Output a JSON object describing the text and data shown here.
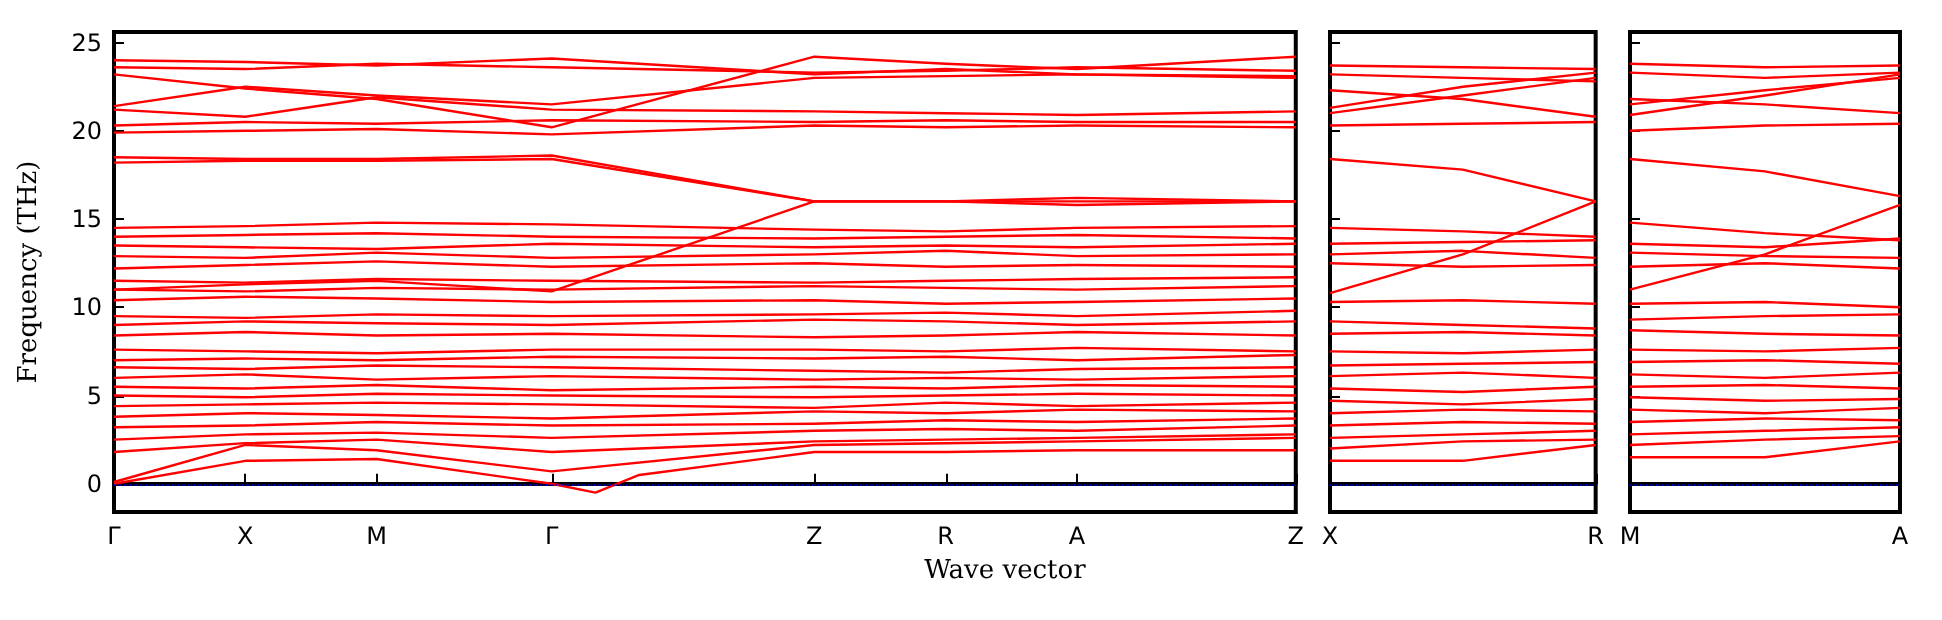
{
  "chart_data": [
    {
      "type": "line",
      "xlabel": "Wave vector",
      "ylabel": "Frequency (THz)",
      "ylim": [
        -1.6,
        25.6
      ],
      "yticks": [
        0,
        5,
        10,
        15,
        20,
        25
      ],
      "categories": [
        "Γ",
        null,
        null,
        "X",
        null,
        null,
        "M",
        null,
        null,
        null,
        "Γ",
        null,
        null,
        null,
        null,
        null,
        "Z",
        null,
        null,
        "R",
        null,
        null,
        "A",
        null,
        null,
        null,
        null,
        "Z"
      ],
      "grid": false,
      "marker": "none",
      "line_style": "solid",
      "ref_lines": [
        {
          "axis": "y",
          "value": 0,
          "color": "#0000ff",
          "line_style": "dotted"
        }
      ],
      "series": [
        {
          "color": "#ff0000",
          "values": [
            0,
            null,
            null,
            1.3,
            null,
            null,
            1.4,
            null,
            null,
            null,
            0,
            -0.5,
            0.5,
            null,
            null,
            null,
            1.8,
            null,
            null,
            1.8,
            null,
            null,
            1.9,
            null,
            null,
            null,
            null,
            1.9
          ]
        },
        {
          "color": "#ff0000",
          "values": [
            0.1,
            null,
            null,
            2.2,
            null,
            null,
            1.9,
            null,
            null,
            null,
            0.7,
            null,
            null,
            null,
            null,
            null,
            2.2,
            null,
            null,
            2.3,
            null,
            null,
            2.4,
            null,
            null,
            null,
            null,
            2.6
          ]
        },
        {
          "color": "#ff0000",
          "values": [
            1.8,
            null,
            null,
            2.3,
            null,
            null,
            2.5,
            null,
            null,
            null,
            1.8,
            null,
            null,
            null,
            null,
            null,
            2.4,
            null,
            null,
            2.5,
            null,
            null,
            2.6,
            null,
            null,
            null,
            null,
            2.8
          ]
        },
        {
          "color": "#ff0000",
          "values": [
            2.5,
            null,
            null,
            2.8,
            null,
            null,
            2.9,
            null,
            null,
            null,
            2.6,
            null,
            null,
            null,
            null,
            null,
            3.0,
            null,
            null,
            3.1,
            null,
            null,
            3.0,
            null,
            null,
            null,
            null,
            3.3
          ]
        },
        {
          "color": "#ff0000",
          "values": [
            3.2,
            null,
            null,
            3.3,
            null,
            null,
            3.5,
            null,
            null,
            null,
            3.3,
            null,
            null,
            null,
            null,
            null,
            3.4,
            null,
            null,
            3.6,
            null,
            null,
            3.5,
            null,
            null,
            null,
            null,
            3.7
          ]
        },
        {
          "color": "#ff0000",
          "values": [
            3.8,
            null,
            null,
            4.0,
            null,
            null,
            3.9,
            null,
            null,
            null,
            3.7,
            null,
            null,
            null,
            null,
            null,
            4.1,
            null,
            null,
            4.0,
            null,
            null,
            4.2,
            null,
            null,
            null,
            null,
            4.1
          ]
        },
        {
          "color": "#ff0000",
          "values": [
            4.4,
            null,
            null,
            4.5,
            null,
            null,
            4.6,
            null,
            null,
            null,
            4.5,
            null,
            null,
            null,
            null,
            null,
            4.3,
            null,
            null,
            4.6,
            null,
            null,
            4.4,
            null,
            null,
            null,
            null,
            4.6
          ]
        },
        {
          "color": "#ff0000",
          "values": [
            5.0,
            null,
            null,
            4.9,
            null,
            null,
            5.1,
            null,
            null,
            null,
            5.0,
            null,
            null,
            null,
            null,
            null,
            4.9,
            null,
            null,
            5.0,
            null,
            null,
            5.1,
            null,
            null,
            null,
            null,
            5.0
          ]
        },
        {
          "color": "#ff0000",
          "values": [
            5.5,
            null,
            null,
            5.4,
            null,
            null,
            5.6,
            null,
            null,
            null,
            5.3,
            null,
            null,
            null,
            null,
            null,
            5.5,
            null,
            null,
            5.4,
            null,
            null,
            5.6,
            null,
            null,
            null,
            null,
            5.5
          ]
        },
        {
          "color": "#ff0000",
          "values": [
            6.0,
            null,
            null,
            6.2,
            null,
            null,
            5.9,
            null,
            null,
            null,
            6.1,
            null,
            null,
            null,
            null,
            null,
            5.9,
            null,
            null,
            6.0,
            null,
            null,
            5.9,
            null,
            null,
            null,
            null,
            6.1
          ]
        },
        {
          "color": "#ff0000",
          "values": [
            6.6,
            null,
            null,
            6.5,
            null,
            null,
            6.7,
            null,
            null,
            null,
            6.6,
            null,
            null,
            null,
            null,
            null,
            6.4,
            null,
            null,
            6.3,
            null,
            null,
            6.5,
            null,
            null,
            null,
            null,
            6.6
          ]
        },
        {
          "color": "#ff0000",
          "values": [
            7.0,
            null,
            null,
            7.1,
            null,
            null,
            7.0,
            null,
            null,
            null,
            7.2,
            null,
            null,
            null,
            null,
            null,
            7.1,
            null,
            null,
            7.2,
            null,
            null,
            7.0,
            null,
            null,
            null,
            null,
            7.3
          ]
        },
        {
          "color": "#ff0000",
          "values": [
            7.6,
            null,
            null,
            7.5,
            null,
            null,
            7.4,
            null,
            null,
            null,
            7.6,
            null,
            null,
            null,
            null,
            null,
            7.6,
            null,
            null,
            7.5,
            null,
            null,
            7.7,
            null,
            null,
            null,
            null,
            7.5
          ]
        },
        {
          "color": "#ff0000",
          "values": [
            8.4,
            null,
            null,
            8.6,
            null,
            null,
            8.4,
            null,
            null,
            null,
            8.5,
            null,
            null,
            null,
            null,
            null,
            8.3,
            null,
            null,
            8.4,
            null,
            null,
            8.6,
            null,
            null,
            null,
            null,
            8.4
          ]
        },
        {
          "color": "#ff0000",
          "values": [
            9.0,
            null,
            null,
            9.2,
            null,
            null,
            9.1,
            null,
            null,
            null,
            9.0,
            null,
            null,
            null,
            null,
            null,
            9.3,
            null,
            null,
            9.2,
            null,
            null,
            9.0,
            null,
            null,
            null,
            null,
            9.2
          ]
        },
        {
          "color": "#ff0000",
          "values": [
            9.5,
            null,
            null,
            9.4,
            null,
            null,
            9.6,
            null,
            null,
            null,
            9.5,
            null,
            null,
            null,
            null,
            null,
            9.6,
            null,
            null,
            9.7,
            null,
            null,
            9.5,
            null,
            null,
            null,
            null,
            9.8
          ]
        },
        {
          "color": "#ff0000",
          "values": [
            10.4,
            null,
            null,
            10.6,
            null,
            null,
            10.5,
            null,
            null,
            null,
            10.3,
            null,
            null,
            null,
            null,
            null,
            10.4,
            null,
            null,
            10.2,
            null,
            null,
            10.3,
            null,
            null,
            null,
            null,
            10.5
          ]
        },
        {
          "color": "#ff0000",
          "values": [
            11.0,
            null,
            null,
            10.9,
            null,
            null,
            11.1,
            null,
            null,
            null,
            11.0,
            null,
            null,
            null,
            null,
            null,
            11.2,
            null,
            null,
            11.1,
            null,
            null,
            11.0,
            null,
            null,
            null,
            null,
            11.2
          ]
        },
        {
          "color": "#ff0000",
          "values": [
            11.5,
            null,
            null,
            11.4,
            null,
            null,
            11.6,
            null,
            null,
            null,
            11.5,
            null,
            null,
            null,
            null,
            null,
            11.4,
            null,
            null,
            11.5,
            null,
            null,
            11.6,
            null,
            null,
            null,
            null,
            11.7
          ]
        },
        {
          "color": "#ff0000",
          "values": [
            12.2,
            null,
            null,
            12.4,
            null,
            null,
            12.6,
            null,
            null,
            null,
            12.3,
            null,
            null,
            null,
            null,
            null,
            12.5,
            null,
            null,
            12.3,
            null,
            null,
            12.4,
            null,
            null,
            null,
            null,
            12.3
          ]
        },
        {
          "color": "#ff0000",
          "values": [
            12.9,
            null,
            null,
            12.8,
            null,
            null,
            13.1,
            null,
            null,
            null,
            12.8,
            null,
            null,
            null,
            null,
            null,
            13.0,
            null,
            null,
            13.2,
            null,
            null,
            12.9,
            null,
            null,
            null,
            null,
            13.0
          ]
        },
        {
          "color": "#ff0000",
          "values": [
            13.5,
            null,
            null,
            13.4,
            null,
            null,
            13.3,
            null,
            null,
            null,
            13.6,
            null,
            null,
            null,
            null,
            null,
            13.4,
            null,
            null,
            13.5,
            null,
            null,
            13.4,
            null,
            null,
            null,
            null,
            13.6
          ]
        },
        {
          "color": "#ff0000",
          "values": [
            14.0,
            null,
            null,
            14.1,
            null,
            null,
            14.2,
            null,
            null,
            null,
            14.0,
            null,
            null,
            null,
            null,
            null,
            13.9,
            null,
            null,
            14.0,
            null,
            null,
            14.1,
            null,
            null,
            null,
            null,
            13.9
          ]
        },
        {
          "color": "#ff0000",
          "values": [
            14.5,
            null,
            null,
            14.6,
            null,
            null,
            14.8,
            null,
            null,
            null,
            14.7,
            null,
            null,
            null,
            null,
            null,
            14.4,
            null,
            null,
            14.3,
            null,
            null,
            14.5,
            null,
            null,
            null,
            null,
            14.6
          ]
        },
        {
          "color": "#ff0000",
          "values": [
            11.0,
            null,
            null,
            11.3,
            null,
            null,
            11.5,
            null,
            null,
            null,
            10.9,
            null,
            null,
            null,
            null,
            null,
            16.0,
            null,
            null,
            16.0,
            null,
            null,
            16.2,
            null,
            null,
            null,
            null,
            16.0
          ]
        },
        {
          "color": "#ff0000",
          "values": [
            18.5,
            null,
            null,
            18.4,
            null,
            null,
            18.4,
            null,
            null,
            null,
            18.6,
            null,
            null,
            null,
            null,
            null,
            16.0,
            null,
            null,
            16.0,
            null,
            null,
            15.8,
            null,
            null,
            null,
            null,
            16.0
          ]
        },
        {
          "color": "#ff0000",
          "values": [
            18.2,
            null,
            null,
            18.3,
            null,
            null,
            18.3,
            null,
            null,
            null,
            18.4,
            null,
            null,
            null,
            null,
            null,
            16.0,
            null,
            null,
            16.0,
            null,
            null,
            16.0,
            null,
            null,
            null,
            null,
            16.0
          ]
        },
        {
          "color": "#ff0000",
          "values": [
            19.9,
            null,
            null,
            20.0,
            null,
            null,
            20.1,
            null,
            null,
            null,
            19.8,
            null,
            null,
            null,
            null,
            null,
            20.3,
            null,
            null,
            20.2,
            null,
            null,
            20.3,
            null,
            null,
            null,
            null,
            20.2
          ]
        },
        {
          "color": "#ff0000",
          "values": [
            20.3,
            null,
            null,
            20.5,
            null,
            null,
            20.4,
            null,
            null,
            null,
            20.6,
            null,
            null,
            null,
            null,
            null,
            20.5,
            null,
            null,
            20.6,
            null,
            null,
            20.5,
            null,
            null,
            null,
            null,
            20.5
          ]
        },
        {
          "color": "#ff0000",
          "values": [
            21.2,
            null,
            null,
            20.8,
            null,
            null,
            21.9,
            null,
            null,
            null,
            21.2,
            null,
            null,
            null,
            null,
            null,
            21.1,
            null,
            null,
            21.0,
            null,
            null,
            20.9,
            null,
            null,
            null,
            null,
            21.1
          ]
        },
        {
          "color": "#ff0000",
          "values": [
            21.4,
            null,
            null,
            22.5,
            null,
            null,
            22.0,
            null,
            null,
            null,
            21.5,
            null,
            null,
            null,
            null,
            null,
            23.0,
            null,
            null,
            23.1,
            null,
            null,
            23.2,
            null,
            null,
            null,
            null,
            23.0
          ]
        },
        {
          "color": "#ff0000",
          "values": [
            23.2,
            null,
            null,
            22.4,
            null,
            null,
            21.8,
            null,
            null,
            null,
            20.2,
            null,
            null,
            null,
            null,
            null,
            24.2,
            null,
            null,
            23.8,
            null,
            null,
            23.5,
            null,
            null,
            null,
            null,
            24.2
          ]
        },
        {
          "color": "#ff0000",
          "values": [
            23.6,
            null,
            null,
            23.5,
            null,
            null,
            23.8,
            null,
            null,
            null,
            23.6,
            null,
            null,
            null,
            null,
            null,
            23.3,
            null,
            null,
            23.4,
            null,
            null,
            23.6,
            null,
            null,
            null,
            null,
            23.4
          ]
        },
        {
          "color": "#ff0000",
          "values": [
            24.0,
            null,
            null,
            23.9,
            null,
            null,
            23.7,
            null,
            null,
            null,
            24.1,
            null,
            null,
            null,
            null,
            null,
            23.2,
            null,
            null,
            23.5,
            null,
            null,
            23.2,
            null,
            null,
            null,
            null,
            23.1
          ]
        }
      ]
    },
    {
      "type": "line",
      "ylim": [
        -1.6,
        25.6
      ],
      "yticks": [
        0,
        5,
        10,
        15,
        20,
        25
      ],
      "tick_labels": "x",
      "categories": [
        "X",
        null,
        "R"
      ],
      "grid": false,
      "marker": "none",
      "line_style": "solid",
      "ref_lines": [
        {
          "axis": "y",
          "value": 0,
          "color": "#0000ff",
          "line_style": "dotted"
        }
      ],
      "series": [
        {
          "color": "#ff0000",
          "values": [
            1.3,
            1.3,
            2.2
          ]
        },
        {
          "color": "#ff0000",
          "values": [
            2.0,
            2.4,
            2.5
          ]
        },
        {
          "color": "#ff0000",
          "values": [
            2.6,
            2.8,
            3.0
          ]
        },
        {
          "color": "#ff0000",
          "values": [
            3.3,
            3.5,
            3.4
          ]
        },
        {
          "color": "#ff0000",
          "values": [
            4.0,
            4.2,
            4.1
          ]
        },
        {
          "color": "#ff0000",
          "values": [
            4.7,
            4.5,
            4.8
          ]
        },
        {
          "color": "#ff0000",
          "values": [
            5.4,
            5.2,
            5.5
          ]
        },
        {
          "color": "#ff0000",
          "values": [
            6.1,
            6.3,
            6.0
          ]
        },
        {
          "color": "#ff0000",
          "values": [
            6.7,
            6.8,
            6.9
          ]
        },
        {
          "color": "#ff0000",
          "values": [
            7.5,
            7.4,
            7.6
          ]
        },
        {
          "color": "#ff0000",
          "values": [
            8.5,
            8.6,
            8.4
          ]
        },
        {
          "color": "#ff0000",
          "values": [
            9.2,
            9.0,
            8.8
          ]
        },
        {
          "color": "#ff0000",
          "values": [
            10.3,
            10.4,
            10.2
          ]
        },
        {
          "color": "#ff0000",
          "values": [
            10.8,
            13.0,
            16.0
          ]
        },
        {
          "color": "#ff0000",
          "values": [
            12.5,
            12.3,
            12.4
          ]
        },
        {
          "color": "#ff0000",
          "values": [
            13.0,
            13.2,
            12.8
          ]
        },
        {
          "color": "#ff0000",
          "values": [
            13.6,
            13.7,
            13.8
          ]
        },
        {
          "color": "#ff0000",
          "values": [
            14.5,
            14.3,
            14.0
          ]
        },
        {
          "color": "#ff0000",
          "values": [
            18.4,
            17.8,
            16.0
          ]
        },
        {
          "color": "#ff0000",
          "values": [
            20.3,
            20.4,
            20.5
          ]
        },
        {
          "color": "#ff0000",
          "values": [
            21.0,
            22.0,
            23.0
          ]
        },
        {
          "color": "#ff0000",
          "values": [
            22.3,
            21.8,
            20.8
          ]
        },
        {
          "color": "#ff0000",
          "values": [
            23.2,
            23.0,
            22.8
          ]
        },
        {
          "color": "#ff0000",
          "values": [
            23.7,
            23.6,
            23.5
          ]
        },
        {
          "color": "#ff0000",
          "values": [
            21.3,
            22.5,
            23.3
          ]
        }
      ]
    },
    {
      "type": "line",
      "ylim": [
        -1.6,
        25.6
      ],
      "yticks": [
        0,
        5,
        10,
        15,
        20,
        25
      ],
      "tick_labels": "x",
      "categories": [
        "M",
        null,
        "A"
      ],
      "grid": false,
      "marker": "none",
      "line_style": "solid",
      "ref_lines": [
        {
          "axis": "y",
          "value": 0,
          "color": "#0000ff",
          "line_style": "dotted"
        }
      ],
      "series": [
        {
          "color": "#ff0000",
          "values": [
            1.5,
            1.5,
            2.4
          ]
        },
        {
          "color": "#ff0000",
          "values": [
            2.2,
            2.5,
            2.7
          ]
        },
        {
          "color": "#ff0000",
          "values": [
            2.8,
            3.0,
            3.2
          ]
        },
        {
          "color": "#ff0000",
          "values": [
            3.5,
            3.7,
            3.6
          ]
        },
        {
          "color": "#ff0000",
          "values": [
            4.2,
            4.0,
            4.3
          ]
        },
        {
          "color": "#ff0000",
          "values": [
            4.9,
            4.7,
            4.8
          ]
        },
        {
          "color": "#ff0000",
          "values": [
            5.5,
            5.6,
            5.4
          ]
        },
        {
          "color": "#ff0000",
          "values": [
            6.2,
            6.0,
            6.3
          ]
        },
        {
          "color": "#ff0000",
          "values": [
            6.9,
            7.0,
            6.8
          ]
        },
        {
          "color": "#ff0000",
          "values": [
            7.6,
            7.5,
            7.7
          ]
        },
        {
          "color": "#ff0000",
          "values": [
            8.7,
            8.5,
            8.4
          ]
        },
        {
          "color": "#ff0000",
          "values": [
            9.3,
            9.5,
            9.6
          ]
        },
        {
          "color": "#ff0000",
          "values": [
            10.2,
            10.3,
            10.0
          ]
        },
        {
          "color": "#ff0000",
          "values": [
            11.0,
            13.0,
            15.8
          ]
        },
        {
          "color": "#ff0000",
          "values": [
            12.3,
            12.5,
            12.2
          ]
        },
        {
          "color": "#ff0000",
          "values": [
            13.1,
            12.9,
            12.8
          ]
        },
        {
          "color": "#ff0000",
          "values": [
            13.6,
            13.4,
            13.9
          ]
        },
        {
          "color": "#ff0000",
          "values": [
            14.8,
            14.2,
            13.8
          ]
        },
        {
          "color": "#ff0000",
          "values": [
            18.4,
            17.7,
            16.3
          ]
        },
        {
          "color": "#ff0000",
          "values": [
            20.0,
            20.3,
            20.4
          ]
        },
        {
          "color": "#ff0000",
          "values": [
            20.9,
            22.0,
            23.2
          ]
        },
        {
          "color": "#ff0000",
          "values": [
            21.8,
            21.5,
            21.0
          ]
        },
        {
          "color": "#ff0000",
          "values": [
            23.3,
            23.0,
            23.3
          ]
        },
        {
          "color": "#ff0000",
          "values": [
            23.8,
            23.6,
            23.7
          ]
        },
        {
          "color": "#ff0000",
          "values": [
            21.5,
            22.3,
            23.0
          ]
        }
      ]
    }
  ]
}
